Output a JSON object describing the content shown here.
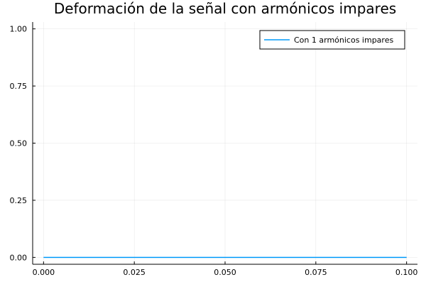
{
  "chart_data": {
    "type": "line",
    "title": "Deformación de la señal con armónicos impares",
    "xlabel": "",
    "ylabel": "",
    "xlim": [
      -0.003,
      0.103
    ],
    "ylim": [
      -0.03,
      1.03
    ],
    "xticks": [
      0.0,
      0.025,
      0.05,
      0.075,
      0.1
    ],
    "xtick_labels": [
      "0.000",
      "0.025",
      "0.050",
      "0.075",
      "0.100"
    ],
    "yticks": [
      0.0,
      0.25,
      0.5,
      0.75,
      1.0
    ],
    "ytick_labels": [
      "0.00",
      "0.25",
      "0.50",
      "0.75",
      "1.00"
    ],
    "grid": true,
    "legend_position": "top-right",
    "series": [
      {
        "name": "Con 1 armónicos impares",
        "color": "#009AFA",
        "x": [
          0.0,
          0.1
        ],
        "y": [
          0.0,
          0.0
        ]
      }
    ]
  }
}
